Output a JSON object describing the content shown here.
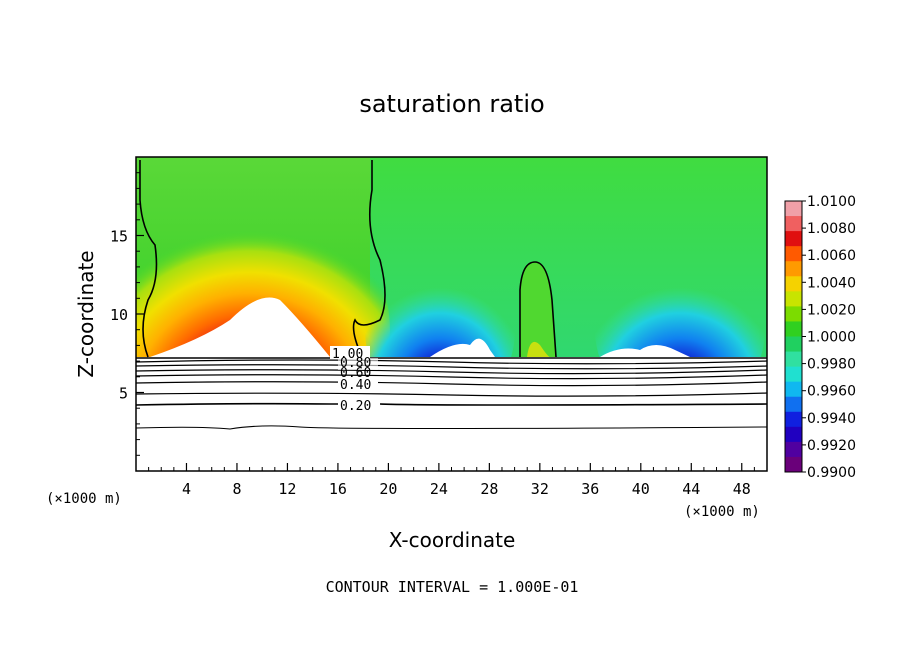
{
  "chart_data": {
    "type": "heatmap",
    "title": "saturation ratio",
    "xlabel": "X-coordinate",
    "ylabel": "Z-coordinate",
    "x_unit_label": "(×1000 m)",
    "z_unit_label": "(×1000 m)",
    "footer": "CONTOUR INTERVAL = 1.000E-01",
    "xlim": [
      0,
      50
    ],
    "ylim": [
      0,
      20
    ],
    "x_ticks": [
      4,
      8,
      12,
      16,
      20,
      24,
      28,
      32,
      36,
      40,
      44,
      48
    ],
    "y_ticks": [
      5,
      10,
      15
    ],
    "colorbar": {
      "labels": [
        "1.0100",
        "1.0080",
        "1.0060",
        "1.0040",
        "1.0020",
        "1.0000",
        "0.9980",
        "0.9960",
        "0.9940",
        "0.9920",
        "0.9900"
      ],
      "colors": [
        "#f0a0a8",
        "#f06060",
        "#e01010",
        "#ff5a00",
        "#ff9a00",
        "#f5d200",
        "#c8e400",
        "#7cdc00",
        "#30d020",
        "#20d060",
        "#30e0a0",
        "#20e0d0",
        "#10b8f0",
        "#1070f0",
        "#1020e0",
        "#2000c0",
        "#5000a0",
        "#6a007a"
      ]
    },
    "contour_labels": [
      "1.00",
      "0.80",
      "0.60",
      "0.40",
      "0.20"
    ]
  }
}
